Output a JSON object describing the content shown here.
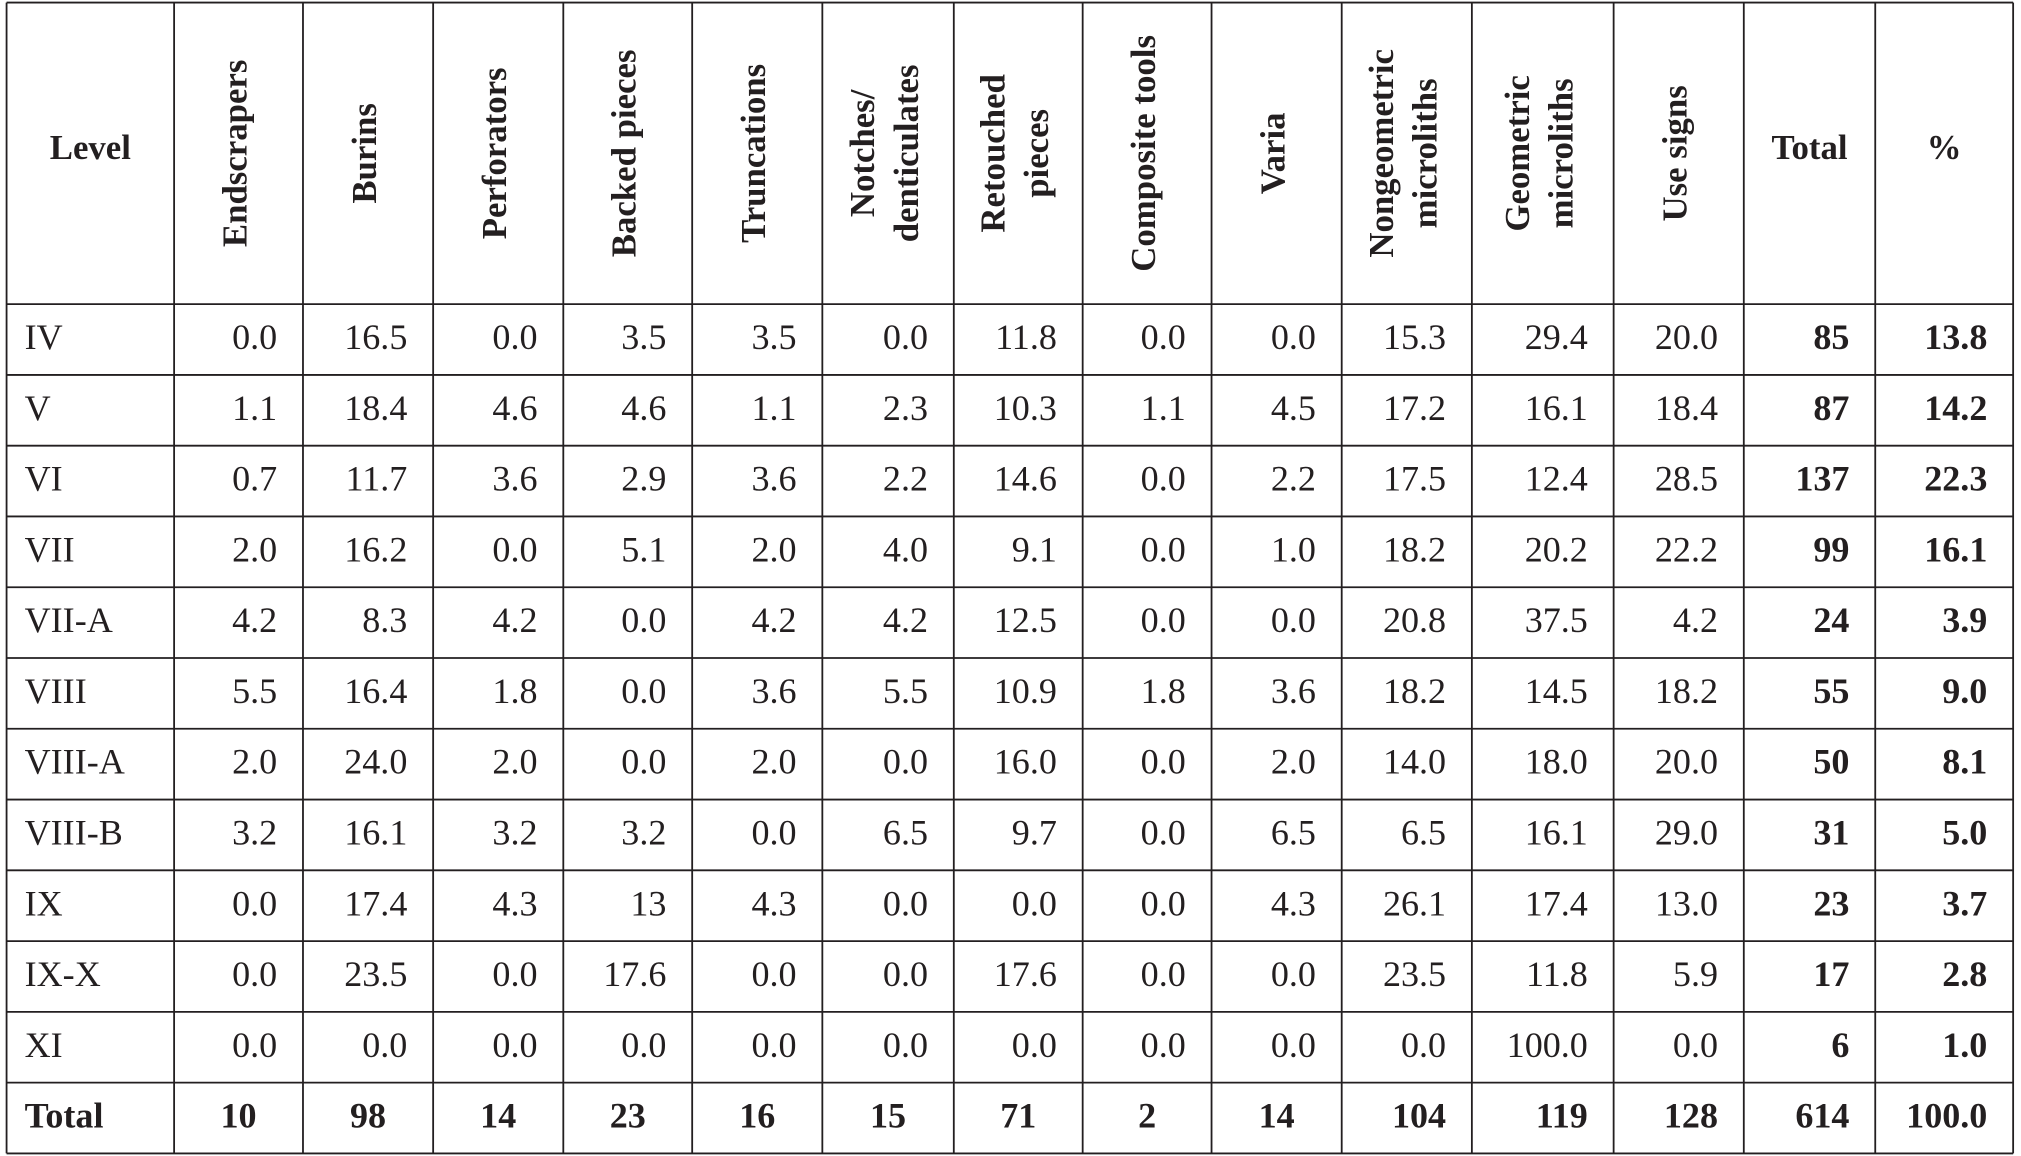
{
  "table": {
    "headers": [
      [
        "Level"
      ],
      [
        "Endscrapers"
      ],
      [
        "Burins"
      ],
      [
        "Perforators"
      ],
      [
        "Backed pieces"
      ],
      [
        "Truncations"
      ],
      [
        "Notches/",
        "denticulates"
      ],
      [
        "Retouched",
        "pieces"
      ],
      [
        "Composite tools"
      ],
      [
        "Varia"
      ],
      [
        "Nongeometric",
        "microliths"
      ],
      [
        "Geometric",
        "microliths"
      ],
      [
        "Use signs"
      ],
      [
        "Total"
      ],
      [
        "%"
      ]
    ],
    "rows": [
      [
        "IV",
        "0.0",
        "16.5",
        "0.0",
        "3.5",
        "3.5",
        "0.0",
        "11.8",
        "0.0",
        "0.0",
        "15.3",
        "29.4",
        "20.0",
        "85",
        "13.8"
      ],
      [
        "V",
        "1.1",
        "18.4",
        "4.6",
        "4.6",
        "1.1",
        "2.3",
        "10.3",
        "1.1",
        "4.5",
        "17.2",
        "16.1",
        "18.4",
        "87",
        "14.2"
      ],
      [
        "VI",
        "0.7",
        "11.7",
        "3.6",
        "2.9",
        "3.6",
        "2.2",
        "14.6",
        "0.0",
        "2.2",
        "17.5",
        "12.4",
        "28.5",
        "137",
        "22.3"
      ],
      [
        "VII",
        "2.0",
        "16.2",
        "0.0",
        "5.1",
        "2.0",
        "4.0",
        "9.1",
        "0.0",
        "1.0",
        "18.2",
        "20.2",
        "22.2",
        "99",
        "16.1"
      ],
      [
        "VII-A",
        "4.2",
        "8.3",
        "4.2",
        "0.0",
        "4.2",
        "4.2",
        "12.5",
        "0.0",
        "0.0",
        "20.8",
        "37.5",
        "4.2",
        "24",
        "3.9"
      ],
      [
        "VIII",
        "5.5",
        "16.4",
        "1.8",
        "0.0",
        "3.6",
        "5.5",
        "10.9",
        "1.8",
        "3.6",
        "18.2",
        "14.5",
        "18.2",
        "55",
        "9.0"
      ],
      [
        "VIII-A",
        "2.0",
        "24.0",
        "2.0",
        "0.0",
        "2.0",
        "0.0",
        "16.0",
        "0.0",
        "2.0",
        "14.0",
        "18.0",
        "20.0",
        "50",
        "8.1"
      ],
      [
        "VIII-B",
        "3.2",
        "16.1",
        "3.2",
        "3.2",
        "0.0",
        "6.5",
        "9.7",
        "0.0",
        "6.5",
        "6.5",
        "16.1",
        "29.0",
        "31",
        "5.0"
      ],
      [
        "IX",
        "0.0",
        "17.4",
        "4.3",
        "13",
        "4.3",
        "0.0",
        "0.0",
        "0.0",
        "4.3",
        "26.1",
        "17.4",
        "13.0",
        "23",
        "3.7"
      ],
      [
        "IX-X",
        "0.0",
        "23.5",
        "0.0",
        "17.6",
        "0.0",
        "0.0",
        "17.6",
        "0.0",
        "0.0",
        "23.5",
        "11.8",
        "5.9",
        "17",
        "2.8"
      ],
      [
        "XI",
        "0.0",
        "0.0",
        "0.0",
        "0.0",
        "0.0",
        "0.0",
        "0.0",
        "0.0",
        "0.0",
        "0.0",
        "100.0",
        "0.0",
        "6",
        "1.0"
      ],
      [
        "Total",
        "10",
        "98",
        "14",
        "23",
        "16",
        "15",
        "71",
        "2",
        "14",
        "104",
        "119",
        "128",
        "614",
        "100.0"
      ]
    ]
  }
}
